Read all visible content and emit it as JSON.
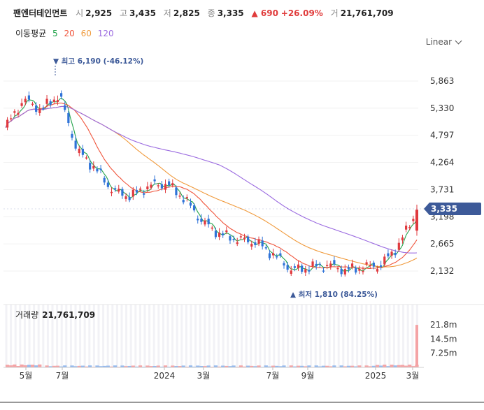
{
  "header": {
    "name": "팬엔터테인먼트",
    "open_label": "시",
    "open": "2,925",
    "high_label": "고",
    "high": "3,435",
    "low_label": "저",
    "low": "2,825",
    "close_label": "종",
    "close": "3,335",
    "change": "▲ 690",
    "change_pct": "+26.09%",
    "volume_label": "거",
    "volume": "21,761,709"
  },
  "moving_average": {
    "label": "이동평균",
    "periods": [
      {
        "period": "5",
        "color": "#22a34a"
      },
      {
        "period": "20",
        "color": "#f0553c"
      },
      {
        "period": "60",
        "color": "#f09a3c"
      },
      {
        "period": "120",
        "color": "#9b6be0"
      }
    ]
  },
  "scale_selector": "Linear",
  "price_axis": {
    "ticks": [
      "5,863",
      "5,330",
      "4,797",
      "4,264",
      "3,731",
      "3,198",
      "2,665",
      "2,132"
    ],
    "current_price": "3,335"
  },
  "annotations": {
    "high": "▼ 최고 6,190 (-46.12%)",
    "low": "▲ 최저 1,810 (84.25%)"
  },
  "volume_panel": {
    "label": "거래량",
    "value": "21,761,709",
    "ticks": [
      "21.8m",
      "14.5m",
      "7.25m"
    ]
  },
  "time_axis": [
    "5월",
    "7월",
    "2024",
    "3월",
    "7월",
    "9월",
    "2025",
    "3월"
  ],
  "colors": {
    "up": "#e0393e",
    "down": "#2f73d8",
    "current_tag": "#3d5a99"
  },
  "chart_data": {
    "type": "candlestick",
    "y_ticks": [
      5863,
      5330,
      4797,
      4264,
      3731,
      3198,
      2665,
      2132
    ],
    "ohlc_sampled": {
      "x": [
        "2023-04",
        "2023-05",
        "2023-06",
        "2023-07",
        "2023-08",
        "2023-09",
        "2023-10",
        "2023-11",
        "2023-12",
        "2024-01",
        "2024-02",
        "2024-03",
        "2024-04",
        "2024-05",
        "2024-06",
        "2024-07",
        "2024-08",
        "2024-09",
        "2024-10",
        "2024-11",
        "2024-12",
        "2025-01",
        "2025-02",
        "2025-03"
      ],
      "close": [
        4950,
        5500,
        5300,
        5600,
        4500,
        4150,
        3700,
        3600,
        3800,
        3850,
        3550,
        3100,
        2850,
        2750,
        2700,
        2450,
        2150,
        2200,
        2250,
        2150,
        2200,
        2250,
        2650,
        3335
      ]
    },
    "recent_high": 6190,
    "recent_low": 1810,
    "last_close": 3335,
    "series": [
      {
        "name": "5",
        "color": "#22a34a"
      },
      {
        "name": "20",
        "color": "#f0553c"
      },
      {
        "name": "60",
        "color": "#f09a3c"
      },
      {
        "name": "120",
        "color": "#9b6be0"
      }
    ],
    "volume_ticks": [
      21.8,
      14.5,
      7.25
    ],
    "last_volume": 21761709
  }
}
